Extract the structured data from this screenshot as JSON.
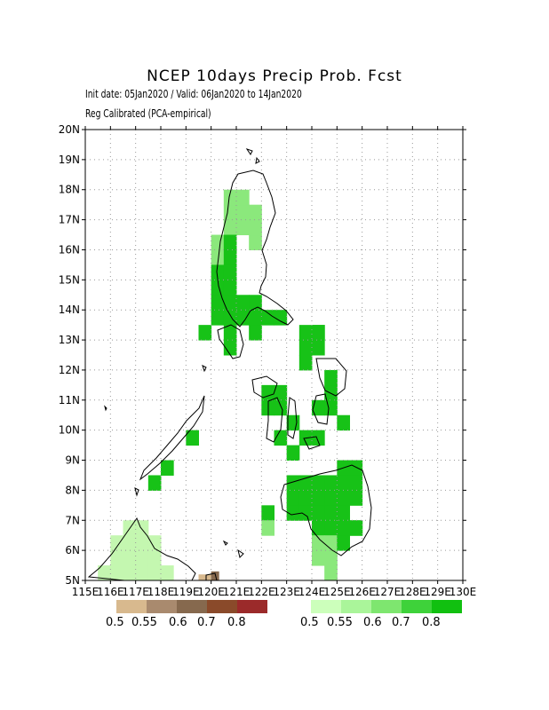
{
  "title": "NCEP 10days Precip Prob. Fcst",
  "subtitle1": "Init date: 05Jan2020 / Valid: 06Jan2020 to 14Jan2020",
  "subtitle2": "Reg Calibrated (PCA-empirical)",
  "lat_labels": [
    "5N",
    "6N",
    "7N",
    "8N",
    "9N",
    "10N",
    "11N",
    "12N",
    "13N",
    "14N",
    "15N",
    "16N",
    "17N",
    "18N",
    "19N",
    "20N"
  ],
  "lon_labels": [
    "115E",
    "116E",
    "117E",
    "118E",
    "119E",
    "120E",
    "121E",
    "122E",
    "123E",
    "124E",
    "125E",
    "126E",
    "127E",
    "128E",
    "129E",
    "130E"
  ],
  "dry_legend": {
    "colors": [
      "#d8b98e",
      "#a98a6e",
      "#86694e",
      "#8a4a2a",
      "#9b2a2a"
    ],
    "labels": [
      "0.5",
      "0.55",
      "0.6",
      "0.7",
      "0.8"
    ]
  },
  "wet_legend": {
    "colors": [
      "#ccffbb",
      "#aaf59a",
      "#7ee66f",
      "#3ed23a",
      "#11c010"
    ],
    "labels": [
      "0.5",
      "0.55",
      "0.6",
      "0.7",
      "0.8"
    ]
  },
  "colors": {
    "wet_light": "#c4f7b0",
    "wet_mid": "#8be87c",
    "wet_strong": "#17c217",
    "dry_light": "#d8b98e",
    "dry_mid": "#86694e",
    "grid": "#999999"
  }
}
